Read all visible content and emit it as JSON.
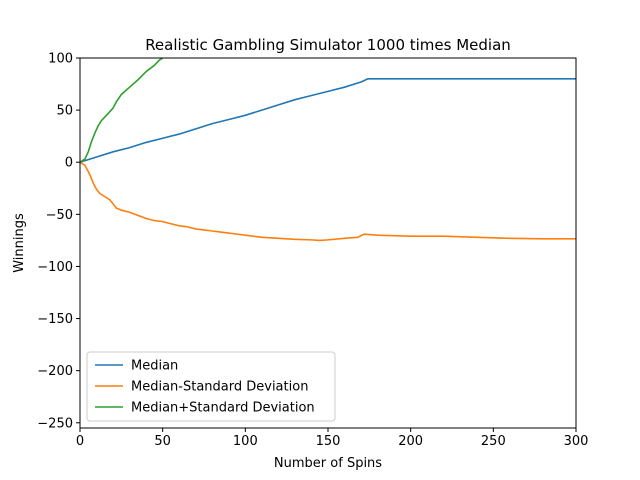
{
  "chart_data": {
    "type": "line",
    "title": "Realistic Gambling Simulator 1000 times Median",
    "xlabel": "Number of Spins",
    "ylabel": "Winnings",
    "xlim": [
      0,
      300
    ],
    "ylim": [
      -255,
      100
    ],
    "xticks": [
      0,
      50,
      100,
      150,
      200,
      250,
      300
    ],
    "xtick_labels": [
      "0",
      "50",
      "100",
      "150",
      "200",
      "250",
      "300"
    ],
    "yticks": [
      100,
      50,
      0,
      -50,
      -100,
      -150,
      -200,
      -250
    ],
    "ytick_labels": [
      "100",
      "50",
      "0",
      "−50",
      "−100",
      "−150",
      "−200",
      "−250"
    ],
    "grid": false,
    "legend_position": "lower-left",
    "series": [
      {
        "name": "Median",
        "color": "#1f77b4",
        "points": [
          [
            0,
            0
          ],
          [
            10,
            5
          ],
          [
            20,
            10
          ],
          [
            30,
            14
          ],
          [
            40,
            19
          ],
          [
            50,
            23
          ],
          [
            60,
            27
          ],
          [
            70,
            32
          ],
          [
            80,
            37
          ],
          [
            90,
            41
          ],
          [
            100,
            45
          ],
          [
            110,
            50
          ],
          [
            120,
            55
          ],
          [
            130,
            60
          ],
          [
            140,
            64
          ],
          [
            150,
            68
          ],
          [
            160,
            72
          ],
          [
            170,
            77
          ],
          [
            174,
            80
          ],
          [
            200,
            80
          ],
          [
            250,
            80
          ],
          [
            300,
            80
          ]
        ]
      },
      {
        "name": "Median-Standard Deviation",
        "color": "#ff7f0e",
        "points": [
          [
            0,
            0
          ],
          [
            3,
            -3
          ],
          [
            6,
            -12
          ],
          [
            8,
            -20
          ],
          [
            10,
            -26
          ],
          [
            12,
            -30
          ],
          [
            15,
            -33
          ],
          [
            18,
            -36
          ],
          [
            20,
            -40
          ],
          [
            22,
            -44
          ],
          [
            25,
            -46
          ],
          [
            30,
            -48
          ],
          [
            35,
            -51
          ],
          [
            40,
            -54
          ],
          [
            45,
            -56
          ],
          [
            50,
            -57
          ],
          [
            55,
            -59
          ],
          [
            60,
            -61
          ],
          [
            65,
            -62
          ],
          [
            70,
            -64
          ],
          [
            75,
            -65
          ],
          [
            80,
            -66
          ],
          [
            85,
            -67
          ],
          [
            90,
            -68
          ],
          [
            95,
            -69
          ],
          [
            100,
            -70
          ],
          [
            110,
            -72
          ],
          [
            120,
            -73
          ],
          [
            130,
            -74
          ],
          [
            140,
            -74.5
          ],
          [
            145,
            -75
          ],
          [
            150,
            -74.5
          ],
          [
            160,
            -73
          ],
          [
            168,
            -72
          ],
          [
            172,
            -69
          ],
          [
            180,
            -70
          ],
          [
            190,
            -70.5
          ],
          [
            200,
            -71
          ],
          [
            220,
            -71
          ],
          [
            240,
            -72
          ],
          [
            260,
            -73
          ],
          [
            280,
            -73.5
          ],
          [
            300,
            -73.5
          ]
        ]
      },
      {
        "name": "Median+Standard Deviation",
        "color": "#2ca02c",
        "points": [
          [
            0,
            0
          ],
          [
            3,
            3
          ],
          [
            5,
            10
          ],
          [
            7,
            20
          ],
          [
            9,
            28
          ],
          [
            11,
            35
          ],
          [
            13,
            40
          ],
          [
            16,
            45
          ],
          [
            20,
            52
          ],
          [
            22,
            58
          ],
          [
            25,
            65
          ],
          [
            30,
            72
          ],
          [
            35,
            79
          ],
          [
            40,
            87
          ],
          [
            45,
            93
          ],
          [
            48,
            98
          ],
          [
            50,
            100
          ]
        ]
      }
    ]
  }
}
